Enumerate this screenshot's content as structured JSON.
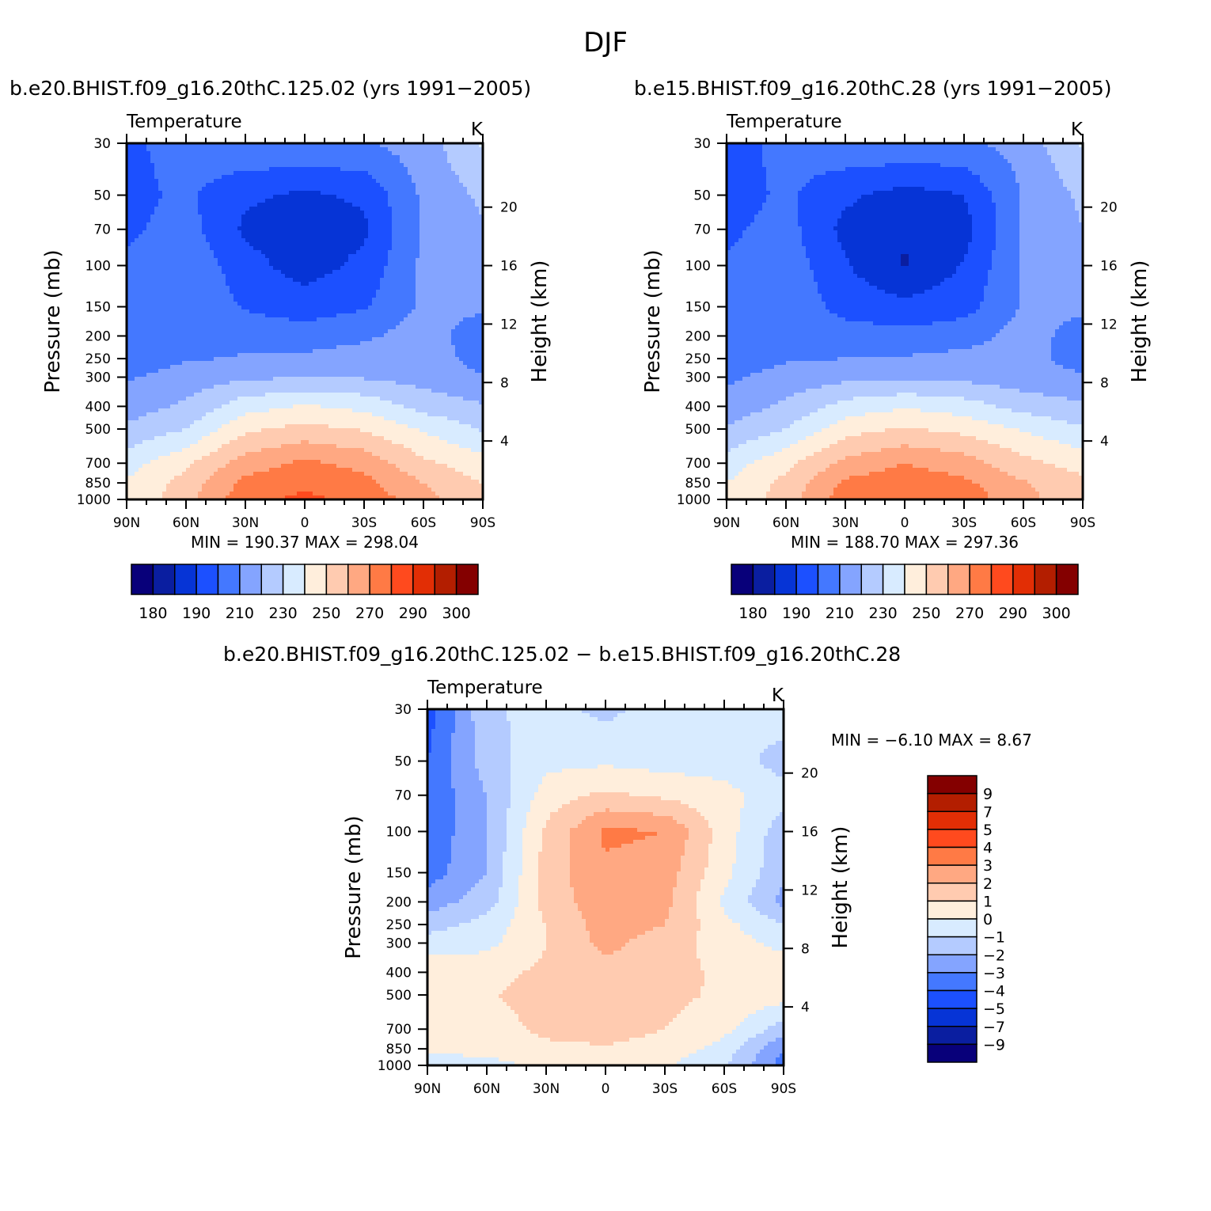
{
  "main_title": "DJF",
  "colors": {
    "abs_palette": [
      "#08007a",
      "#0a1ea0",
      "#0634d6",
      "#1c50ff",
      "#4478ff",
      "#84a4ff",
      "#b4cbff",
      "#d8ebff",
      "#ffeedc",
      "#ffcbb0",
      "#ffa882",
      "#ff7a45",
      "#ff4a1e",
      "#e22e05",
      "#b31e00",
      "#840000"
    ],
    "diff_palette": [
      "#08007a",
      "#0a1ea0",
      "#0634d6",
      "#1c50ff",
      "#4478ff",
      "#84a4ff",
      "#b4cbff",
      "#d8ebff",
      "#ffeedc",
      "#ffcbb0",
      "#ffa882",
      "#ff7a45",
      "#ff4a1e",
      "#e22e05",
      "#b31e00",
      "#840000"
    ]
  },
  "panels": [
    {
      "id": "top-left",
      "title": "b.e20.BHIST.f09_g16.20thC.125.02 (yrs 1991−2005)",
      "variable": "Temperature",
      "units": "K",
      "min_max": "MIN  =  190.37   MAX  =  298.04"
    },
    {
      "id": "top-right",
      "title": "b.e15.BHIST.f09_g16.20thC.28 (yrs 1991−2005)",
      "variable": "Temperature",
      "units": "K",
      "min_max": "MIN  =  188.70   MAX  =  297.36"
    },
    {
      "id": "bottom",
      "title": "b.e20.BHIST.f09_g16.20thC.125.02  −  b.e15.BHIST.f09_g16.20thC.28",
      "variable": "Temperature",
      "units": "K",
      "min_max": "MIN  =   −6.10   MAX  =     8.67"
    }
  ],
  "axes": {
    "ylabel": "Pressure (mb)",
    "y2label": "Height (km)",
    "pressure_ticks": [
      "30",
      "50",
      "70",
      "100",
      "150",
      "200",
      "250",
      "300",
      "400",
      "500",
      "700",
      "850",
      "1000"
    ],
    "height_ticks": [
      "20",
      "16",
      "12",
      "8",
      "4"
    ],
    "lat_ticks": [
      "90N",
      "60N",
      "30N",
      "0",
      "30S",
      "60S",
      "90S"
    ]
  },
  "colorbars": {
    "abs_labels": [
      "180",
      "190",
      "210",
      "230",
      "250",
      "270",
      "290",
      "300"
    ],
    "diff_labels": [
      "9",
      "7",
      "5",
      "4",
      "3",
      "2",
      "1",
      "0",
      "−1",
      "−2",
      "−3",
      "−4",
      "−5",
      "−7",
      "−9"
    ]
  },
  "chart_data": [
    {
      "type": "heatmap",
      "title": "b.e20.BHIST.f09_g16.20thC.125.02 (yrs 1991−2005)",
      "x": [
        90,
        60,
        30,
        0,
        -30,
        -60,
        -90
      ],
      "x_tick_labels": [
        "90N",
        "60N",
        "30N",
        "0",
        "30S",
        "60S",
        "90S"
      ],
      "y": [
        30,
        50,
        70,
        100,
        150,
        200,
        250,
        300,
        400,
        500,
        700,
        850,
        1000
      ],
      "xlabel": "",
      "ylabel": "Pressure (mb)",
      "y2label": "Height (km)",
      "units": "K",
      "contour_levels": [
        180,
        190,
        200,
        210,
        220,
        230,
        240,
        250,
        260,
        270,
        280,
        290,
        295,
        300
      ],
      "z": [
        [
          208,
          214,
          219,
          220,
          219,
          225,
          241
        ],
        [
          207,
          212,
          202,
          198,
          202,
          222,
          232
        ],
        [
          208,
          214,
          198,
          193,
          198,
          222,
          229
        ],
        [
          212,
          218,
          204,
          195,
          203,
          222,
          228
        ],
        [
          214,
          219,
          209,
          205,
          209,
          222,
          222
        ],
        [
          214,
          218,
          216,
          215,
          218,
          225,
          214
        ],
        [
          215,
          219,
          221,
          222,
          225,
          227,
          215
        ],
        [
          219,
          224,
          228,
          230,
          229,
          226,
          221
        ],
        [
          225,
          232,
          246,
          251,
          247,
          236,
          231
        ],
        [
          232,
          240,
          258,
          263,
          259,
          249,
          239
        ],
        [
          246,
          258,
          275,
          282,
          277,
          262,
          254
        ],
        [
          251,
          264,
          283,
          288,
          283,
          270,
          260
        ],
        [
          252,
          266,
          287,
          292,
          287,
          274,
          262
        ]
      ],
      "min": 190.37,
      "max": 298.04
    },
    {
      "type": "heatmap",
      "title": "b.e15.BHIST.f09_g16.20thC.28 (yrs 1991−2005)",
      "x": [
        90,
        60,
        30,
        0,
        -30,
        -60,
        -90
      ],
      "x_tick_labels": [
        "90N",
        "60N",
        "30N",
        "0",
        "30S",
        "60S",
        "90S"
      ],
      "y": [
        30,
        50,
        70,
        100,
        150,
        200,
        250,
        300,
        400,
        500,
        700,
        850,
        1000
      ],
      "xlabel": "",
      "ylabel": "Pressure (mb)",
      "y2label": "Height (km)",
      "units": "K",
      "contour_levels": [
        180,
        190,
        200,
        210,
        220,
        230,
        240,
        250,
        260,
        270,
        280,
        290,
        295,
        300
      ],
      "z": [
        [
          206,
          213,
          218,
          219,
          218,
          224,
          241
        ],
        [
          205,
          212,
          202,
          196,
          200,
          221,
          232
        ],
        [
          208,
          214,
          197,
          191,
          196,
          221,
          230
        ],
        [
          211,
          216,
          201,
          189,
          201,
          221,
          228
        ],
        [
          212,
          218,
          206,
          203,
          206,
          221,
          222
        ],
        [
          213,
          218,
          215,
          213,
          216,
          224,
          216
        ],
        [
          214,
          219,
          220,
          221,
          223,
          223,
          216
        ],
        [
          218,
          224,
          227,
          228,
          227,
          224,
          221
        ],
        [
          224,
          232,
          244,
          249,
          245,
          236,
          232
        ],
        [
          231,
          240,
          256,
          261,
          257,
          249,
          241
        ],
        [
          245,
          257,
          273,
          280,
          275,
          263,
          256
        ],
        [
          250,
          263,
          282,
          286,
          282,
          271,
          262
        ],
        [
          251,
          265,
          286,
          290,
          286,
          273,
          263
        ]
      ],
      "min": 188.7,
      "max": 297.36
    },
    {
      "type": "heatmap",
      "title": "b.e20.BHIST.f09_g16.20thC.125.02  −  b.e15.BHIST.f09_g16.20thC.28",
      "x": [
        90,
        60,
        30,
        0,
        -30,
        -60,
        -90
      ],
      "x_tick_labels": [
        "90N",
        "60N",
        "30N",
        "0",
        "30S",
        "60S",
        "90S"
      ],
      "y": [
        30,
        50,
        70,
        100,
        150,
        200,
        250,
        300,
        400,
        500,
        700,
        850,
        1000
      ],
      "xlabel": "",
      "ylabel": "Pressure (mb)",
      "y2label": "Height (km)",
      "units": "K",
      "contour_levels": [
        -9,
        -7,
        -5,
        -4,
        -3,
        -2,
        -1,
        0,
        1,
        2,
        3,
        4,
        5,
        7,
        9
      ],
      "z": [
        [
          -4.5,
          -1.2,
          -0.6,
          -1.3,
          -0.4,
          -0.6,
          -0.3
        ],
        [
          -4.0,
          -1.5,
          -0.3,
          -0.2,
          -0.4,
          -0.4,
          -1.5
        ],
        [
          -3.8,
          -2.0,
          0.5,
          1.2,
          0.8,
          0.3,
          -0.5
        ],
        [
          -3.8,
          -2.0,
          1.2,
          3.2,
          3.0,
          0.5,
          -1.6
        ],
        [
          -3.5,
          -2.0,
          1.5,
          2.8,
          2.5,
          0.3,
          -1.8
        ],
        [
          -2.5,
          -1.5,
          1.4,
          2.6,
          2.3,
          -0.2,
          -2.3
        ],
        [
          -1.5,
          -0.6,
          1.0,
          2.5,
          2.0,
          0.3,
          -1.0
        ],
        [
          -0.5,
          -0.3,
          1.0,
          2.3,
          1.5,
          0.5,
          -0.3
        ],
        [
          0.6,
          0.7,
          1.2,
          1.6,
          1.4,
          0.8,
          0.6
        ],
        [
          0.7,
          0.9,
          1.4,
          1.6,
          1.3,
          0.8,
          0.5
        ],
        [
          0.4,
          0.6,
          1.2,
          1.4,
          1.0,
          0.3,
          -1.5
        ],
        [
          0.2,
          0.3,
          0.8,
          0.9,
          0.6,
          -0.4,
          -3.0
        ],
        [
          -0.5,
          -0.3,
          0.2,
          0.2,
          0.1,
          -0.8,
          -3.5
        ]
      ],
      "min": -6.1,
      "max": 8.67
    }
  ]
}
